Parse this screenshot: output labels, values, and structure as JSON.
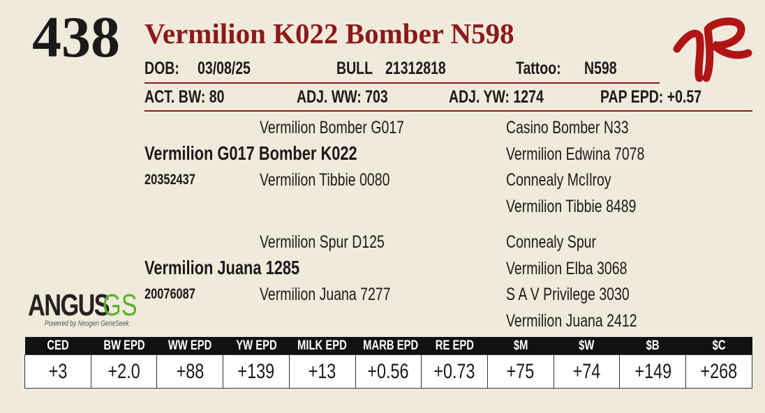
{
  "lot": "438",
  "name": "Vermilion K022 Bomber N598",
  "info": {
    "dob_label": "DOB:",
    "dob": "03/08/25",
    "sex": "BULL",
    "registration": "21312818",
    "tattoo_label": "Tattoo:",
    "tattoo": "N598"
  },
  "weights": [
    "ACT. BW: 80",
    "ADJ. WW: 703",
    "ADJ. YW: 1274",
    "PAP EPD: +0.57"
  ],
  "pedigree": {
    "sire": {
      "name": "Vermilion G017 Bomber K022",
      "registration": "20352437",
      "sire": "Vermilion Bomber G017",
      "dam": "Vermilion Tibbie 0080",
      "grandparents": [
        "Casino Bomber N33",
        "Vermilion Edwina 7078",
        "Connealy McIlroy",
        "Vermilion Tibbie 8489"
      ]
    },
    "dam": {
      "name": "Vermilion Juana 1285",
      "registration": "20076087",
      "sire": "Vermilion Spur D125",
      "dam": "Vermilion Juana 7277",
      "grandparents": [
        "Connealy Spur",
        "Vermilion Elba 3068",
        "S A V Privilege 3030",
        "Vermilion Juana 2412"
      ]
    }
  },
  "logo": {
    "angus": "ANGUS",
    "gs": "GS",
    "tagline": "Powered by Neogen GeneSeek"
  },
  "epd_table": {
    "headers": [
      "CED",
      "BW EPD",
      "WW EPD",
      "YW EPD",
      "MILK EPD",
      "MARB EPD",
      "RE EPD",
      "$M",
      "$W",
      "$B",
      "$C"
    ],
    "values": [
      "+3",
      "+2.0",
      "+88",
      "+139",
      "+13",
      "+0.56",
      "+0.73",
      "+75",
      "+74",
      "+149",
      "+268"
    ]
  }
}
